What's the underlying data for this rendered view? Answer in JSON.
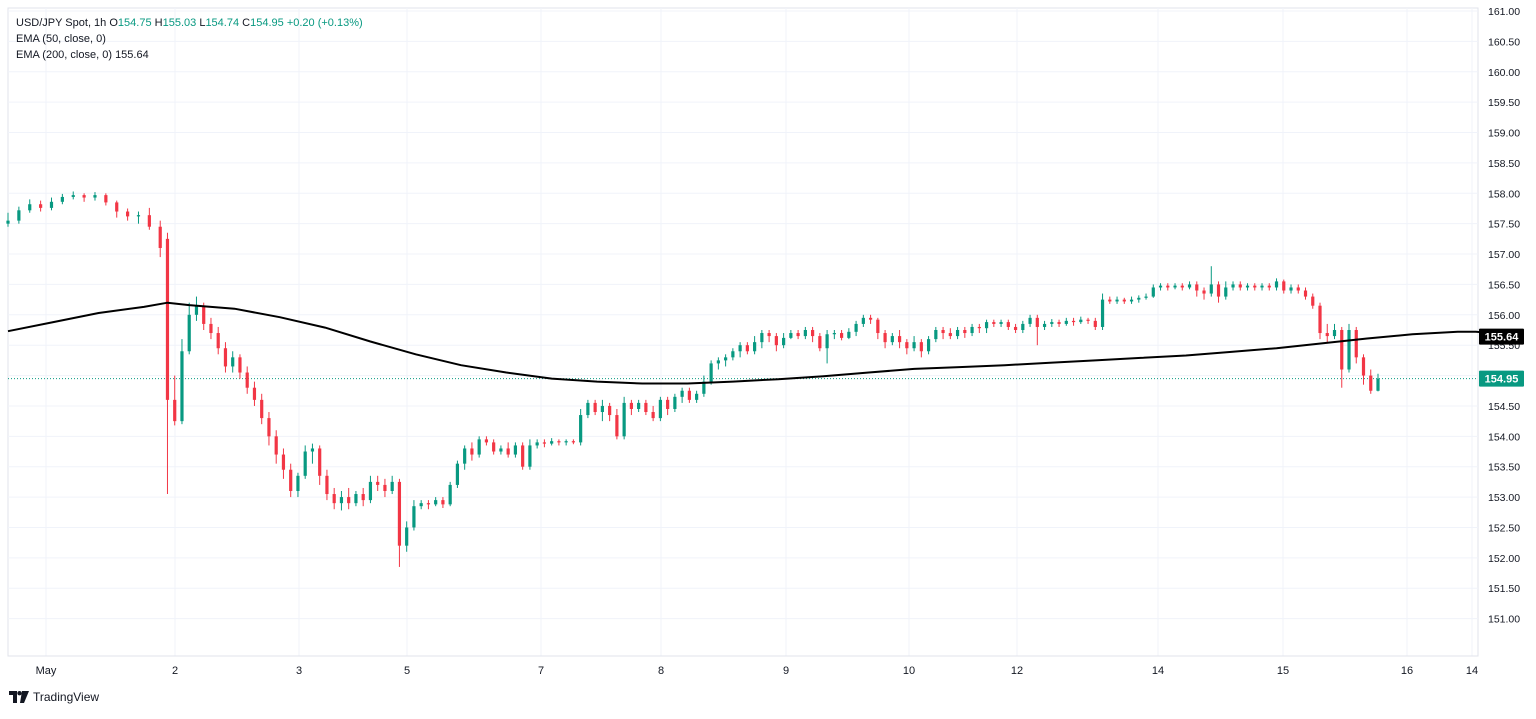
{
  "legend": {
    "symbol": "USD/JPY Spot, 1h",
    "open_label": "O",
    "open": "154.75",
    "high_label": "H",
    "high": "155.03",
    "low_label": "L",
    "low": "154.74",
    "close_label": "C",
    "close": "154.95",
    "change": "+0.20 (+0.13%)",
    "ema50_label": "EMA (50, close, 0)",
    "ema200_label": "EMA (200, close, 0)",
    "ema200_value": "155.64"
  },
  "branding": {
    "name": "TradingView"
  },
  "colors": {
    "up": "#089981",
    "down": "#F23645",
    "ema200": "#000000",
    "grid": "#F0F3FA",
    "last_price": "#089981"
  },
  "chart_data": {
    "type": "candlestick",
    "title": "USD/JPY Spot, 1h",
    "grid": true,
    "y_range": [
      150.45,
      161.05
    ],
    "y_ticks": [
      151.0,
      151.5,
      152.0,
      152.5,
      153.0,
      153.5,
      154.0,
      154.5,
      155.0,
      155.5,
      156.0,
      156.5,
      157.0,
      157.5,
      158.0,
      158.5,
      159.0,
      159.5,
      160.0,
      160.5,
      161.0
    ],
    "y_tick_labels": [
      "151.00",
      "151.50",
      "152.00",
      "152.50",
      "153.00",
      "153.50",
      "154.00",
      "154.50",
      "",
      "155.50",
      "156.00",
      "156.50",
      "157.00",
      "157.50",
      "158.00",
      "158.50",
      "159.00",
      "159.50",
      "160.00",
      "160.50",
      "161.00"
    ],
    "x_tick_labels": [
      "May",
      "2",
      "3",
      "5",
      "7",
      "8",
      "9",
      "10",
      "12",
      "14",
      "15",
      "16",
      "14"
    ],
    "last_price": "154.95",
    "ema200_last": "155.64",
    "ema200_series": [
      [
        0,
        155.73
      ],
      [
        25,
        155.88
      ],
      [
        50,
        156.03
      ],
      [
        75,
        156.13
      ],
      [
        88,
        156.2
      ],
      [
        100,
        156.16
      ],
      [
        125,
        156.1
      ],
      [
        150,
        155.96
      ],
      [
        175,
        155.79
      ],
      [
        200,
        155.56
      ],
      [
        225,
        155.35
      ],
      [
        250,
        155.17
      ],
      [
        275,
        155.05
      ],
      [
        300,
        154.95
      ],
      [
        325,
        154.9
      ],
      [
        350,
        154.87
      ],
      [
        375,
        154.87
      ],
      [
        400,
        154.9
      ],
      [
        425,
        154.94
      ],
      [
        450,
        154.99
      ],
      [
        475,
        155.05
      ],
      [
        500,
        155.11
      ],
      [
        525,
        155.14
      ],
      [
        550,
        155.17
      ],
      [
        575,
        155.21
      ],
      [
        600,
        155.25
      ],
      [
        625,
        155.29
      ],
      [
        650,
        155.33
      ],
      [
        675,
        155.39
      ],
      [
        700,
        155.45
      ],
      [
        725,
        155.53
      ],
      [
        750,
        155.61
      ],
      [
        775,
        155.68
      ],
      [
        800,
        155.72
      ],
      [
        810,
        155.72
      ],
      [
        822,
        155.69
      ]
    ],
    "candles": [
      [
        0,
        157.5,
        157.55,
        157.68,
        157.45
      ],
      [
        6,
        157.55,
        157.72,
        157.78,
        157.5
      ],
      [
        12,
        157.72,
        157.82,
        157.9,
        157.68
      ],
      [
        18,
        157.82,
        157.76,
        157.88,
        157.7
      ],
      [
        24,
        157.76,
        157.86,
        157.93,
        157.72
      ],
      [
        30,
        157.86,
        157.94,
        157.99,
        157.82
      ],
      [
        36,
        157.94,
        157.97,
        158.03,
        157.9
      ],
      [
        42,
        157.97,
        157.93,
        158.0,
        157.86
      ],
      [
        48,
        157.93,
        157.97,
        158.02,
        157.88
      ],
      [
        54,
        157.97,
        157.85,
        158.0,
        157.8
      ],
      [
        60,
        157.85,
        157.7,
        157.88,
        157.6
      ],
      [
        66,
        157.7,
        157.62,
        157.75,
        157.55
      ],
      [
        72,
        157.62,
        157.64,
        157.7,
        157.5
      ],
      [
        78,
        157.64,
        157.45,
        157.76,
        157.4
      ],
      [
        84,
        157.45,
        157.1,
        157.55,
        156.95
      ],
      [
        88,
        157.25,
        154.6,
        157.35,
        153.05
      ],
      [
        92,
        154.6,
        154.25,
        155.0,
        154.18
      ],
      [
        96,
        154.25,
        155.4,
        155.6,
        154.2
      ],
      [
        100,
        155.4,
        156.0,
        156.2,
        155.35
      ],
      [
        104,
        156.0,
        156.15,
        156.3,
        155.9
      ],
      [
        108,
        156.15,
        155.85,
        156.2,
        155.75
      ],
      [
        112,
        155.85,
        155.7,
        155.95,
        155.6
      ],
      [
        116,
        155.7,
        155.45,
        155.8,
        155.35
      ],
      [
        120,
        155.45,
        155.15,
        155.55,
        155.05
      ],
      [
        124,
        155.15,
        155.3,
        155.4,
        155.05
      ],
      [
        128,
        155.3,
        155.05,
        155.35,
        154.95
      ],
      [
        132,
        155.05,
        154.8,
        155.15,
        154.7
      ],
      [
        136,
        154.8,
        154.6,
        154.9,
        154.5
      ],
      [
        140,
        154.6,
        154.3,
        154.7,
        154.2
      ],
      [
        144,
        154.3,
        154.0,
        154.4,
        153.85
      ],
      [
        148,
        154.0,
        153.7,
        154.1,
        153.55
      ],
      [
        152,
        153.7,
        153.45,
        153.8,
        153.3
      ],
      [
        156,
        153.45,
        153.1,
        153.55,
        153.0
      ],
      [
        160,
        153.1,
        153.35,
        153.4,
        153.0
      ],
      [
        164,
        153.35,
        153.75,
        153.85,
        153.3
      ],
      [
        168,
        153.75,
        153.8,
        153.88,
        153.55
      ],
      [
        172,
        153.8,
        153.35,
        153.85,
        153.2
      ],
      [
        176,
        153.35,
        153.05,
        153.45,
        152.95
      ],
      [
        180,
        153.05,
        152.9,
        153.15,
        152.8
      ],
      [
        184,
        152.9,
        153.0,
        153.1,
        152.78
      ],
      [
        188,
        153.0,
        152.9,
        153.15,
        152.8
      ],
      [
        192,
        152.9,
        153.05,
        153.1,
        152.85
      ],
      [
        196,
        153.05,
        152.95,
        153.15,
        152.85
      ],
      [
        200,
        152.95,
        153.25,
        153.35,
        152.9
      ],
      [
        204,
        153.25,
        153.2,
        153.35,
        153.1
      ],
      [
        208,
        153.2,
        153.1,
        153.3,
        153.0
      ],
      [
        212,
        153.1,
        153.25,
        153.35,
        153.05
      ],
      [
        216,
        153.25,
        152.2,
        153.3,
        151.85
      ],
      [
        220,
        152.2,
        152.5,
        152.6,
        152.1
      ],
      [
        224,
        152.5,
        152.85,
        152.95,
        152.45
      ],
      [
        228,
        152.85,
        152.9,
        152.95,
        152.8
      ],
      [
        232,
        152.9,
        152.88,
        152.95,
        152.8
      ],
      [
        236,
        152.88,
        152.95,
        153.0,
        152.85
      ],
      [
        240,
        152.95,
        152.88,
        153.0,
        152.82
      ],
      [
        244,
        152.88,
        153.2,
        153.25,
        152.85
      ],
      [
        248,
        153.2,
        153.55,
        153.6,
        153.15
      ],
      [
        252,
        153.55,
        153.8,
        153.85,
        153.45
      ],
      [
        256,
        153.8,
        153.7,
        153.9,
        153.6
      ],
      [
        260,
        153.7,
        153.95,
        154.0,
        153.65
      ],
      [
        264,
        153.95,
        153.9,
        154.0,
        153.85
      ],
      [
        268,
        153.9,
        153.75,
        153.95,
        153.7
      ],
      [
        272,
        153.75,
        153.8,
        153.85,
        153.7
      ],
      [
        276,
        153.8,
        153.7,
        153.9,
        153.65
      ],
      [
        280,
        153.7,
        153.85,
        153.9,
        153.65
      ],
      [
        284,
        153.85,
        153.5,
        153.9,
        153.45
      ],
      [
        288,
        153.5,
        153.85,
        153.95,
        153.45
      ],
      [
        292,
        153.85,
        153.9,
        153.95,
        153.8
      ],
      [
        296,
        153.9,
        153.88,
        153.95,
        153.82
      ],
      [
        300,
        153.88,
        153.92,
        153.97,
        153.85
      ],
      [
        304,
        153.92,
        153.9,
        153.95,
        153.85
      ],
      [
        308,
        153.9,
        153.92,
        153.95,
        153.85
      ],
      [
        312,
        153.92,
        153.9,
        153.95,
        153.87
      ],
      [
        316,
        153.9,
        154.35,
        154.45,
        153.85
      ],
      [
        320,
        154.35,
        154.55,
        154.6,
        154.3
      ],
      [
        324,
        154.55,
        154.4,
        154.6,
        154.35
      ],
      [
        328,
        154.4,
        154.5,
        154.6,
        154.25
      ],
      [
        332,
        154.5,
        154.35,
        154.55,
        154.25
      ],
      [
        336,
        154.35,
        154.0,
        154.45,
        153.95
      ],
      [
        340,
        154.0,
        154.55,
        154.65,
        153.95
      ],
      [
        344,
        154.55,
        154.45,
        154.6,
        154.35
      ],
      [
        348,
        154.45,
        154.55,
        154.6,
        154.4
      ],
      [
        352,
        154.55,
        154.4,
        154.6,
        154.35
      ],
      [
        356,
        154.4,
        154.3,
        154.5,
        154.25
      ],
      [
        360,
        154.3,
        154.6,
        154.65,
        154.25
      ],
      [
        364,
        154.6,
        154.45,
        154.65,
        154.35
      ],
      [
        368,
        154.45,
        154.65,
        154.7,
        154.4
      ],
      [
        372,
        154.65,
        154.75,
        154.8,
        154.55
      ],
      [
        376,
        154.75,
        154.6,
        154.8,
        154.55
      ],
      [
        380,
        154.6,
        154.7,
        154.75,
        154.55
      ],
      [
        384,
        154.7,
        154.9,
        155.0,
        154.65
      ],
      [
        388,
        154.9,
        155.2,
        155.25,
        154.85
      ],
      [
        392,
        155.2,
        155.25,
        155.3,
        155.1
      ],
      [
        396,
        155.25,
        155.3,
        155.35,
        155.15
      ],
      [
        400,
        155.3,
        155.4,
        155.45,
        155.25
      ],
      [
        404,
        155.4,
        155.5,
        155.55,
        155.3
      ],
      [
        408,
        155.5,
        155.4,
        155.55,
        155.35
      ],
      [
        412,
        155.4,
        155.55,
        155.65,
        155.35
      ],
      [
        416,
        155.55,
        155.7,
        155.75,
        155.45
      ],
      [
        420,
        155.7,
        155.65,
        155.75,
        155.55
      ],
      [
        424,
        155.65,
        155.5,
        155.7,
        155.4
      ],
      [
        428,
        155.5,
        155.62,
        155.7,
        155.45
      ],
      [
        432,
        155.62,
        155.7,
        155.75,
        155.6
      ],
      [
        436,
        155.7,
        155.65,
        155.75,
        155.6
      ],
      [
        440,
        155.65,
        155.75,
        155.8,
        155.6
      ],
      [
        444,
        155.75,
        155.65,
        155.8,
        155.55
      ],
      [
        448,
        155.65,
        155.45,
        155.7,
        155.4
      ],
      [
        452,
        155.45,
        155.68,
        155.75,
        155.2
      ],
      [
        456,
        155.68,
        155.7,
        155.75,
        155.6
      ],
      [
        460,
        155.7,
        155.62,
        155.75,
        155.58
      ],
      [
        464,
        155.62,
        155.72,
        155.78,
        155.6
      ],
      [
        468,
        155.72,
        155.85,
        155.9,
        155.65
      ],
      [
        472,
        155.85,
        155.95,
        156.0,
        155.8
      ],
      [
        476,
        155.95,
        155.92,
        156.0,
        155.85
      ],
      [
        480,
        155.92,
        155.7,
        155.95,
        155.6
      ],
      [
        484,
        155.7,
        155.55,
        155.75,
        155.45
      ],
      [
        488,
        155.55,
        155.65,
        155.7,
        155.5
      ],
      [
        492,
        155.65,
        155.55,
        155.75,
        155.45
      ],
      [
        496,
        155.55,
        155.45,
        155.6,
        155.35
      ],
      [
        500,
        155.45,
        155.55,
        155.65,
        155.4
      ],
      [
        504,
        155.55,
        155.4,
        155.6,
        155.3
      ],
      [
        508,
        155.4,
        155.6,
        155.65,
        155.35
      ],
      [
        512,
        155.6,
        155.75,
        155.8,
        155.55
      ],
      [
        516,
        155.75,
        155.7,
        155.8,
        155.6
      ],
      [
        520,
        155.7,
        155.65,
        155.78,
        155.6
      ],
      [
        524,
        155.65,
        155.75,
        155.8,
        155.6
      ],
      [
        528,
        155.75,
        155.7,
        155.8,
        155.62
      ],
      [
        532,
        155.7,
        155.8,
        155.85,
        155.65
      ],
      [
        536,
        155.8,
        155.78,
        155.85,
        155.7
      ],
      [
        540,
        155.78,
        155.88,
        155.92,
        155.7
      ],
      [
        544,
        155.88,
        155.85,
        155.92,
        155.8
      ],
      [
        548,
        155.85,
        155.88,
        155.92,
        155.8
      ],
      [
        552,
        155.88,
        155.8,
        155.92,
        155.75
      ],
      [
        556,
        155.8,
        155.75,
        155.85,
        155.7
      ],
      [
        560,
        155.75,
        155.85,
        155.9,
        155.7
      ],
      [
        564,
        155.85,
        155.95,
        156.0,
        155.8
      ],
      [
        568,
        155.95,
        155.8,
        156.0,
        155.5
      ],
      [
        572,
        155.8,
        155.85,
        155.9,
        155.75
      ],
      [
        576,
        155.85,
        155.88,
        155.93,
        155.8
      ],
      [
        580,
        155.88,
        155.85,
        155.92,
        155.8
      ],
      [
        584,
        155.85,
        155.9,
        155.95,
        155.82
      ],
      [
        588,
        155.9,
        155.88,
        155.95,
        155.82
      ],
      [
        592,
        155.88,
        155.92,
        155.97,
        155.85
      ],
      [
        596,
        155.92,
        155.9,
        155.95,
        155.85
      ],
      [
        600,
        155.9,
        155.8,
        155.95,
        155.75
      ],
      [
        604,
        155.8,
        156.25,
        156.35,
        155.75
      ],
      [
        608,
        156.25,
        156.22,
        156.3,
        156.18
      ],
      [
        612,
        156.22,
        156.25,
        156.3,
        156.18
      ],
      [
        616,
        156.25,
        156.22,
        156.28,
        156.18
      ],
      [
        620,
        156.22,
        156.25,
        156.3,
        156.18
      ],
      [
        624,
        156.25,
        156.28,
        156.32,
        156.2
      ],
      [
        628,
        156.28,
        156.3,
        156.35,
        156.25
      ],
      [
        632,
        156.3,
        156.45,
        156.5,
        156.28
      ],
      [
        636,
        156.45,
        156.48,
        156.52,
        156.4
      ],
      [
        640,
        156.48,
        156.45,
        156.52,
        156.4
      ],
      [
        644,
        156.45,
        156.48,
        156.52,
        156.42
      ],
      [
        648,
        156.48,
        156.45,
        156.52,
        156.4
      ],
      [
        652,
        156.45,
        156.5,
        156.55,
        156.42
      ],
      [
        656,
        156.5,
        156.4,
        156.55,
        156.3
      ],
      [
        660,
        156.4,
        156.35,
        156.45,
        156.25
      ],
      [
        664,
        156.35,
        156.5,
        156.8,
        156.3
      ],
      [
        668,
        156.5,
        156.3,
        156.55,
        156.2
      ],
      [
        672,
        156.3,
        156.45,
        156.55,
        156.25
      ],
      [
        676,
        156.45,
        156.5,
        156.55,
        156.4
      ],
      [
        680,
        156.5,
        156.45,
        156.55,
        156.4
      ],
      [
        684,
        156.45,
        156.48,
        156.52,
        156.4
      ],
      [
        688,
        156.48,
        156.45,
        156.52,
        156.4
      ],
      [
        692,
        156.45,
        156.48,
        156.52,
        156.4
      ],
      [
        696,
        156.48,
        156.45,
        156.52,
        156.4
      ],
      [
        700,
        156.45,
        156.55,
        156.6,
        156.4
      ],
      [
        704,
        156.55,
        156.4,
        156.58,
        156.35
      ],
      [
        708,
        156.4,
        156.45,
        156.5,
        156.35
      ],
      [
        712,
        156.45,
        156.4,
        156.5,
        156.35
      ],
      [
        716,
        156.4,
        156.3,
        156.45,
        156.25
      ],
      [
        720,
        156.3,
        156.15,
        156.35,
        156.1
      ],
      [
        724,
        156.15,
        155.7,
        156.2,
        155.6
      ],
      [
        728,
        155.7,
        155.65,
        155.85,
        155.55
      ],
      [
        732,
        155.65,
        155.75,
        155.85,
        155.6
      ],
      [
        736,
        155.75,
        155.1,
        155.8,
        154.8
      ],
      [
        740,
        155.1,
        155.75,
        155.85,
        155.05
      ],
      [
        744,
        155.75,
        155.3,
        155.8,
        155.2
      ],
      [
        748,
        155.3,
        155.0,
        155.35,
        154.85
      ],
      [
        752,
        155.0,
        154.75,
        155.1,
        154.7
      ],
      [
        756,
        154.75,
        154.95,
        155.03,
        154.74
      ]
    ]
  }
}
